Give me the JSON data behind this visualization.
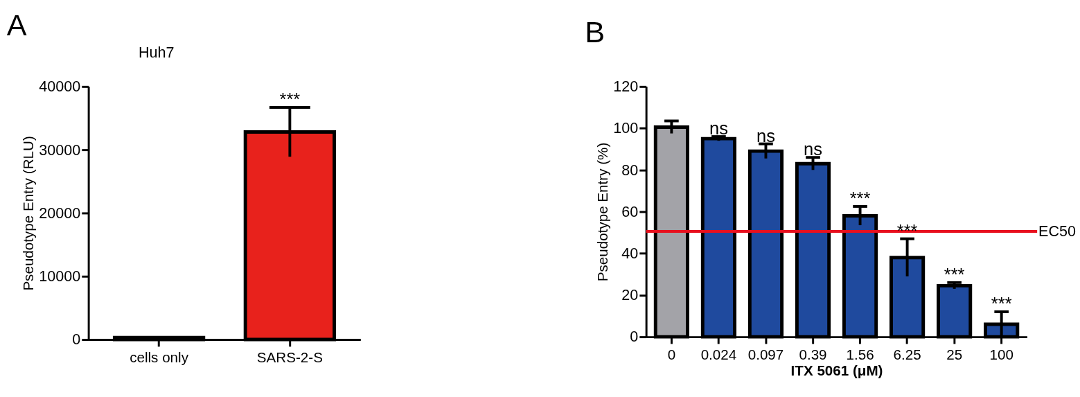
{
  "chart_data": [
    {
      "type": "bar",
      "title": "Huh7",
      "ylabel": "Pseudotype Entry (RLU)",
      "categories": [
        "cells only",
        "SARS-2-S"
      ],
      "values": [
        300,
        32800
      ],
      "errors": [
        null,
        3900
      ],
      "colors": [
        "#e8221c",
        "#e8221c"
      ],
      "ylim": [
        0,
        40000
      ],
      "yticks": [
        0,
        10000,
        20000,
        30000,
        40000
      ],
      "grid": false,
      "annotations": [
        "A",
        {
          "text": "***",
          "x": "SARS-2-S",
          "y": 36700
        }
      ]
    },
    {
      "type": "bar",
      "ylabel": "Pseudotype Entry (%)",
      "xlabel": "ITX 5061 (μM)",
      "categories": [
        "0",
        "0.024",
        "0.097",
        "0.39",
        "1.56",
        "6.25",
        "25",
        "100"
      ],
      "values": [
        100.5,
        95,
        89,
        83,
        58,
        38,
        24.5,
        6
      ],
      "errors": [
        3,
        1,
        3.5,
        3,
        4.5,
        9,
        1.5,
        6
      ],
      "colors": [
        "#a3a3a8",
        "#1f4a9e",
        "#1f4a9e",
        "#1f4a9e",
        "#1f4a9e",
        "#1f4a9e",
        "#1f4a9e",
        "#1f4a9e"
      ],
      "ylim": [
        0,
        120
      ],
      "yticks": [
        0,
        20,
        40,
        60,
        80,
        100,
        120
      ],
      "grid": false,
      "ref_lines": [
        {
          "axis": "y",
          "value": 50.5,
          "label": "EC50",
          "color": "#e8101e"
        }
      ],
      "annotations": [
        "B",
        {
          "text": "ns",
          "x": "0.024",
          "y": 96
        },
        {
          "text": "ns",
          "x": "0.097",
          "y": 92.5
        },
        {
          "text": "ns",
          "x": "0.39",
          "y": 86
        },
        {
          "text": "***",
          "x": "1.56",
          "y": 62.5
        },
        {
          "text": "***",
          "x": "6.25",
          "y": 47
        },
        {
          "text": "***",
          "x": "25",
          "y": 26
        },
        {
          "text": "***",
          "x": "100",
          "y": 12
        }
      ]
    }
  ]
}
